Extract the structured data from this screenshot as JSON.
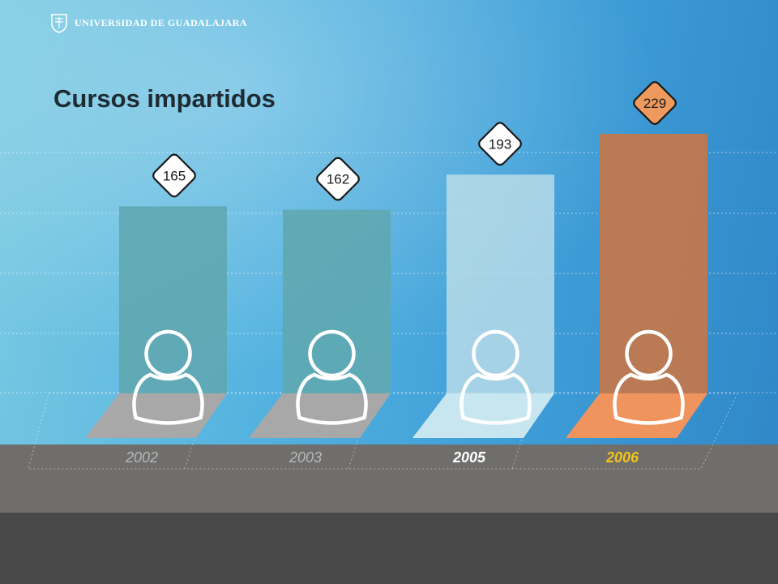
{
  "header": {
    "university": "UNIVERSIDAD DE GUADALAJARA",
    "crest_icon": "university-crest-icon"
  },
  "colors": {
    "bar_2002": "#5fa8b2",
    "bar_2003": "#5fa8b2",
    "bar_2005": "#bfdfea",
    "bar_2006": "#c4774a",
    "base_gray": "#a8a8a8",
    "base_2005": "#c8e6f0",
    "base_2006": "#f0945e",
    "label_gray": "#b8b8b8",
    "label_white": "#ffffff",
    "label_gold": "#f2c31a"
  },
  "chart_data": {
    "type": "bar",
    "title": "Cursos impartidos",
    "categories": [
      "2002",
      "2003",
      "2005",
      "2006"
    ],
    "values": [
      165,
      162,
      193,
      229
    ],
    "ylim": [
      0,
      229
    ],
    "grid": true,
    "icon": "person-icon"
  }
}
